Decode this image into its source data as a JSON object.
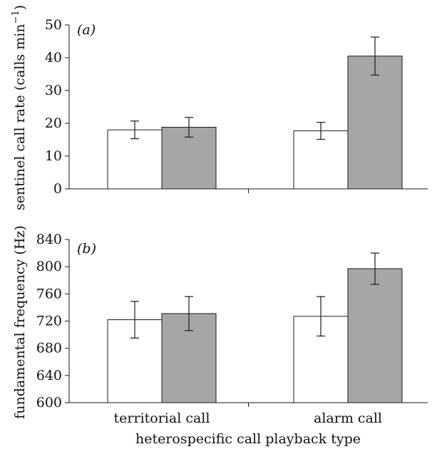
{
  "chart_data": [
    {
      "type": "bar",
      "panel_label": "(a)",
      "ylabel": "sentinel call rate (calls min",
      "ylabel_sup": "−1",
      "ylabel_end": ")",
      "ylim": [
        0,
        50
      ],
      "yticks": [
        0,
        10,
        20,
        30,
        40,
        50
      ],
      "categories": [
        "territorial call",
        "alarm call"
      ],
      "series": [
        {
          "color": "#ffffff",
          "values": [
            18.0,
            17.7
          ],
          "errors": [
            2.7,
            2.6
          ]
        },
        {
          "color": "#a6a6a6",
          "values": [
            18.8,
            40.5
          ],
          "errors": [
            3.0,
            5.8
          ]
        }
      ]
    },
    {
      "type": "bar",
      "panel_label": "(b)",
      "ylabel": "fundamental frequency (Hz)",
      "ylim": [
        600,
        840
      ],
      "yticks": [
        600,
        640,
        680,
        720,
        760,
        800,
        840
      ],
      "categories": [
        "territorial call",
        "alarm call"
      ],
      "xlabel": "heterospecific call playback type",
      "series": [
        {
          "color": "#ffffff",
          "values": [
            722,
            727
          ],
          "errors": [
            27,
            29
          ]
        },
        {
          "color": "#a6a6a6",
          "values": [
            731,
            797
          ],
          "errors": [
            25,
            23
          ]
        }
      ]
    }
  ]
}
